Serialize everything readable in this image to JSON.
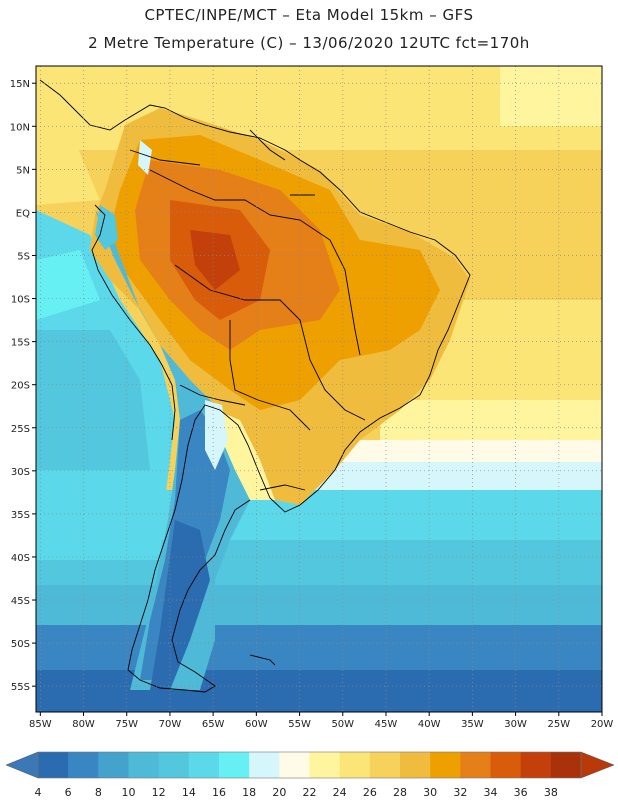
{
  "header": {
    "line1": "CPTEC/INPE/MCT –  Eta Model 15km – GFS",
    "line2": "2 Metre Temperature (C) – 13/06/2020 12UTC fct=170h"
  },
  "map": {
    "lon_labels": [
      "85W",
      "80W",
      "75W",
      "70W",
      "65W",
      "60W",
      "55W",
      "50W",
      "45W",
      "40W",
      "35W",
      "30W",
      "25W",
      "20W"
    ],
    "lat_labels": [
      "15N",
      "10N",
      "5N",
      "EQ",
      "5S",
      "10S",
      "15S",
      "20S",
      "25S",
      "30S",
      "35S",
      "40S",
      "45S",
      "50S",
      "55S"
    ],
    "lon_values": [
      -85,
      -80,
      -75,
      -70,
      -65,
      -60,
      -55,
      -50,
      -45,
      -40,
      -35,
      -30,
      -25,
      -20
    ],
    "lat_values": [
      15,
      10,
      5,
      0,
      -5,
      -10,
      -15,
      -20,
      -25,
      -30,
      -35,
      -40,
      -45,
      -50,
      -55
    ],
    "lon_range": [
      -85.5,
      -20
    ],
    "lat_range": [
      -58,
      17
    ],
    "grid": "dotted"
  },
  "colorbar": {
    "labels": [
      "4",
      "6",
      "8",
      "10",
      "12",
      "14",
      "16",
      "18",
      "20",
      "22",
      "24",
      "26",
      "28",
      "30",
      "32",
      "34",
      "36",
      "38"
    ],
    "colors": [
      "#2b6cb0",
      "#3a86c2",
      "#44a3cc",
      "#4fb9d8",
      "#52c7de",
      "#5bd9ea",
      "#66f0f4",
      "#d5f6fb",
      "#fffbe6",
      "#fff59e",
      "#fbe577",
      "#f6d25a",
      "#efbc3e",
      "#eea000",
      "#e57f18",
      "#d85c09",
      "#c3400a",
      "#a9320a"
    ],
    "under_color": "#3b78b8",
    "over_color": "#b83a0b"
  }
}
